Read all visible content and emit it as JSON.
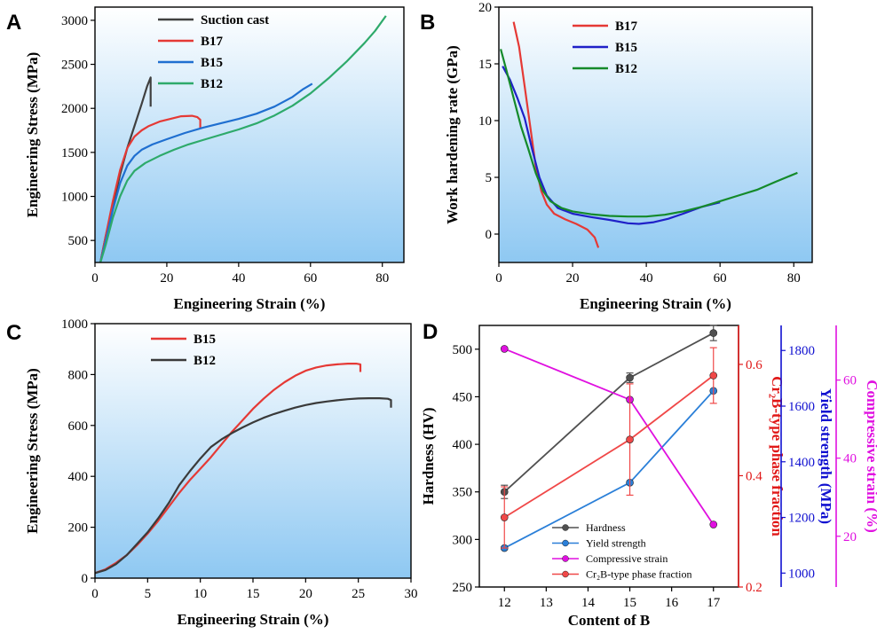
{
  "chart_data": [
    {
      "panel": "A",
      "type": "line",
      "xlabel": "Engineering Strain (%)",
      "ylabel": "Engineering Stress (MPa)",
      "xlim": [
        0,
        86
      ],
      "ylim": [
        250,
        3150
      ],
      "xticks": [
        0,
        20,
        40,
        60,
        80
      ],
      "yticks": [
        500,
        1000,
        1500,
        2000,
        2500,
        3000
      ],
      "legend_position": "top-left",
      "series": [
        {
          "name": "Suction cast",
          "color": "#404040",
          "x": [
            1.5,
            3,
            5,
            7,
            9,
            11,
            13,
            14.5,
            15.5,
            15.5
          ],
          "y": [
            250,
            550,
            900,
            1250,
            1550,
            1800,
            2050,
            2250,
            2350,
            2020
          ]
        },
        {
          "name": "B17",
          "color": "#e53935",
          "x": [
            1.5,
            3,
            5,
            7,
            9,
            11,
            13,
            15,
            18,
            21,
            24,
            27,
            28.5,
            29.3,
            29.3
          ],
          "y": [
            250,
            550,
            950,
            1300,
            1550,
            1680,
            1750,
            1800,
            1850,
            1880,
            1910,
            1915,
            1900,
            1870,
            1780
          ]
        },
        {
          "name": "B15",
          "color": "#1f6fd0",
          "x": [
            1.5,
            3,
            5,
            7,
            9,
            11,
            13,
            16,
            20,
            25,
            30,
            35,
            40,
            45,
            50,
            55,
            58,
            60.5
          ],
          "y": [
            250,
            500,
            850,
            1150,
            1350,
            1460,
            1530,
            1590,
            1650,
            1720,
            1780,
            1830,
            1880,
            1940,
            2020,
            2130,
            2220,
            2280
          ]
        },
        {
          "name": "B12",
          "color": "#2eaa6b",
          "x": [
            1.5,
            3,
            5,
            7,
            9,
            11,
            14,
            18,
            22,
            26,
            30,
            35,
            40,
            45,
            50,
            55,
            60,
            65,
            70,
            75,
            78,
            81
          ],
          "y": [
            250,
            450,
            760,
            1000,
            1180,
            1290,
            1380,
            1460,
            1530,
            1590,
            1640,
            1700,
            1760,
            1830,
            1920,
            2030,
            2170,
            2340,
            2530,
            2740,
            2880,
            3050
          ]
        }
      ]
    },
    {
      "panel": "B",
      "type": "line",
      "xlabel": "Engineering Strain (%)",
      "ylabel": "Work hardening rate (GPa)",
      "xlim": [
        0,
        85
      ],
      "ylim": [
        -2.5,
        20
      ],
      "xticks": [
        0,
        20,
        40,
        60,
        80
      ],
      "yticks": [
        0,
        5,
        10,
        15,
        20
      ],
      "legend_position": "top-center",
      "series": [
        {
          "name": "B17",
          "color": "#e53935",
          "x": [
            4,
            5.5,
            7,
            8.5,
            10,
            11.5,
            13,
            15,
            18,
            21,
            24,
            26,
            27
          ],
          "y": [
            18.7,
            16.5,
            13,
            9.5,
            6,
            3.8,
            2.6,
            1.8,
            1.3,
            0.9,
            0.4,
            -0.3,
            -1.2
          ]
        },
        {
          "name": "B15",
          "color": "#1f20c8",
          "x": [
            1,
            3,
            5,
            7,
            9,
            11,
            13,
            16,
            20,
            25,
            30,
            35,
            38,
            42,
            46,
            50,
            55,
            60
          ],
          "y": [
            14.8,
            13.6,
            12,
            10.2,
            7.5,
            5,
            3.4,
            2.3,
            1.8,
            1.5,
            1.25,
            0.95,
            0.9,
            1.05,
            1.35,
            1.8,
            2.4,
            2.8
          ]
        },
        {
          "name": "B12",
          "color": "#148a2a",
          "x": [
            0.5,
            2,
            4,
            6,
            8,
            10,
            12,
            14,
            17,
            20,
            25,
            30,
            35,
            40,
            45,
            50,
            55,
            60,
            65,
            70,
            75,
            81
          ],
          "y": [
            16.3,
            14.5,
            12,
            9.5,
            7.5,
            5.4,
            3.8,
            2.9,
            2.3,
            2.0,
            1.75,
            1.6,
            1.55,
            1.55,
            1.7,
            2.0,
            2.4,
            2.9,
            3.4,
            3.9,
            4.6,
            5.4
          ]
        }
      ]
    },
    {
      "panel": "C",
      "type": "line",
      "xlabel": "Engineering Strain (%)",
      "ylabel": "Engineering Stress (MPa)",
      "xlim": [
        0,
        30
      ],
      "ylim": [
        0,
        1000
      ],
      "xticks": [
        0,
        5,
        10,
        15,
        20,
        25,
        30
      ],
      "yticks": [
        0,
        200,
        400,
        600,
        800,
        1000
      ],
      "legend_position": "top-left",
      "series": [
        {
          "name": "B15",
          "color": "#e53935",
          "x": [
            0,
            1,
            2,
            3,
            4,
            5,
            6,
            7,
            8,
            9,
            10,
            11,
            12,
            13,
            14,
            15,
            16,
            17,
            18,
            19,
            20,
            21,
            22,
            23,
            24,
            24.8,
            25.2,
            25.2
          ],
          "y": [
            20,
            35,
            60,
            90,
            130,
            175,
            225,
            280,
            335,
            385,
            430,
            475,
            525,
            575,
            620,
            665,
            705,
            740,
            770,
            795,
            815,
            828,
            836,
            840,
            843,
            843,
            840,
            810
          ]
        },
        {
          "name": "B12",
          "color": "#3a3a3a",
          "x": [
            0,
            1,
            2,
            3,
            4,
            5,
            6,
            7,
            8,
            9,
            10,
            11,
            12,
            13,
            14,
            15,
            16,
            17,
            18,
            19,
            20,
            21,
            22,
            23,
            24,
            25,
            26,
            27,
            27.8,
            28.1,
            28.1
          ],
          "y": [
            20,
            32,
            55,
            90,
            135,
            180,
            235,
            295,
            365,
            420,
            470,
            515,
            545,
            570,
            592,
            612,
            630,
            645,
            658,
            670,
            680,
            688,
            694,
            699,
            703,
            706,
            707,
            707,
            705,
            700,
            670
          ]
        }
      ]
    },
    {
      "panel": "D",
      "type": "line",
      "xlabel": "Content of B",
      "xlim": [
        11.4,
        17.6
      ],
      "xticks": [
        12,
        13,
        14,
        15,
        16,
        17
      ],
      "legend_position": "bottom-right",
      "axes": [
        {
          "id": "hardness",
          "label": "Hardness (HV)",
          "color": "#000000",
          "ylim": [
            250,
            525
          ],
          "ticks": [
            250,
            300,
            350,
            400,
            450,
            500
          ]
        },
        {
          "id": "phase",
          "label": "Cr₂B-type phase fraction",
          "color": "#e01818",
          "ylim": [
            0.2,
            0.67
          ],
          "ticks": [
            "0.2",
            "0.4",
            "0.6"
          ]
        },
        {
          "id": "yield",
          "label": "Yield strength (MPa)",
          "color": "#1010d0",
          "ylim": [
            950,
            1890
          ],
          "ticks": [
            1000,
            1200,
            1400,
            1600,
            1800
          ]
        },
        {
          "id": "strain",
          "label": "Compressive strain (%)",
          "color": "#e010e0",
          "ylim": [
            7,
            74
          ],
          "ticks": [
            20,
            40,
            60
          ]
        }
      ],
      "series": [
        {
          "name": "Hardness",
          "axis": "hardness",
          "color": "#505050",
          "x": [
            12,
            15,
            17
          ],
          "y": [
            350,
            470,
            517
          ],
          "err": [
            7,
            5,
            8
          ]
        },
        {
          "name": "Yield strength",
          "axis": "yield",
          "color": "#2a7fd8",
          "x": [
            12,
            15,
            17
          ],
          "y": [
            1090,
            1325,
            1655
          ],
          "err": null
        },
        {
          "name": "Compressive strain",
          "axis": "strain",
          "color": "#e010e0",
          "x": [
            12,
            15,
            17
          ],
          "y": [
            68,
            55,
            23
          ],
          "err": null
        },
        {
          "name": "Cr₂B-type phase fraction",
          "axis": "phase",
          "color": "#f04848",
          "x": [
            12,
            15,
            17
          ],
          "y": [
            0.325,
            0.465,
            0.58
          ],
          "err": [
            0.055,
            0.1,
            0.05
          ]
        }
      ]
    }
  ],
  "colors": {
    "bg_gradient_top": "#ffffff",
    "bg_gradient_bottom": "#8ec8f2"
  }
}
